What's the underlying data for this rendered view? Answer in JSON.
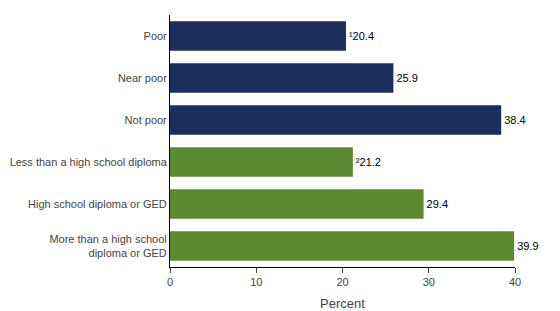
{
  "chart_data": {
    "type": "bar",
    "orientation": "horizontal",
    "categories": [
      "Poor",
      "Near poor",
      "Not poor",
      "Less than a high school diploma",
      "High school diploma or GED",
      "More than a high school\ndiploma or GED"
    ],
    "values": [
      20.4,
      25.9,
      38.4,
      21.2,
      29.4,
      39.9
    ],
    "value_labels": [
      "¹20.4",
      "25.9",
      "38.4",
      "²21.2",
      "29.4",
      "39.9"
    ],
    "colors": [
      "#1b2e5e",
      "#1b2e5e",
      "#1b2e5e",
      "#5c8a30",
      "#5c8a30",
      "#5c8a30"
    ],
    "xlabel": "Percent",
    "xlim": [
      0,
      40
    ],
    "xticks": [
      0,
      10,
      20,
      30,
      40
    ],
    "data_labels": true,
    "grid": false
  }
}
